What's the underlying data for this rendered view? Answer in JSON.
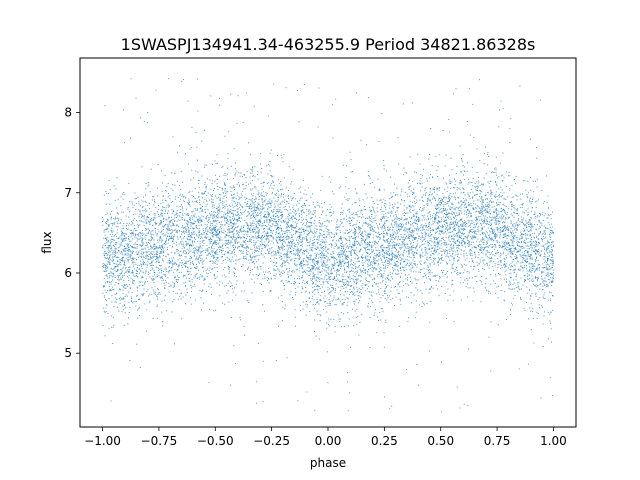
{
  "chart_data": {
    "type": "scatter",
    "title": "1SWASPJ134941.34-463255.9 Period 34821.86328s",
    "xlabel": "phase",
    "ylabel": "flux",
    "xlim": [
      -1.1,
      1.1
    ],
    "ylim": [
      4.08,
      8.68
    ],
    "x_ticks": [
      -1.0,
      -0.75,
      -0.5,
      -0.25,
      0.0,
      0.25,
      0.5,
      0.75,
      1.0
    ],
    "x_tick_labels": [
      "−1.00",
      "−0.75",
      "−0.50",
      "−0.25",
      "0.00",
      "0.25",
      "0.50",
      "0.75",
      "1.00"
    ],
    "y_ticks": [
      5,
      6,
      7,
      8
    ],
    "y_tick_labels": [
      "5",
      "6",
      "7",
      "8"
    ],
    "grid": false,
    "marker_color": "#1f77b4",
    "series": [
      {
        "x_range": [
          -1.0,
          1.0
        ],
        "flux_trend": {
          "phase": [
            -1.0,
            -0.75,
            -0.5,
            -0.3,
            -0.25,
            0.0,
            0.25,
            0.5,
            0.7,
            0.75,
            1.0
          ],
          "median_flux": [
            6.15,
            6.35,
            6.55,
            6.6,
            6.6,
            6.1,
            6.35,
            6.55,
            6.6,
            6.58,
            6.15
          ]
        },
        "typical_spread": 0.35,
        "outlier_range": [
          4.25,
          8.5
        ]
      }
    ]
  }
}
